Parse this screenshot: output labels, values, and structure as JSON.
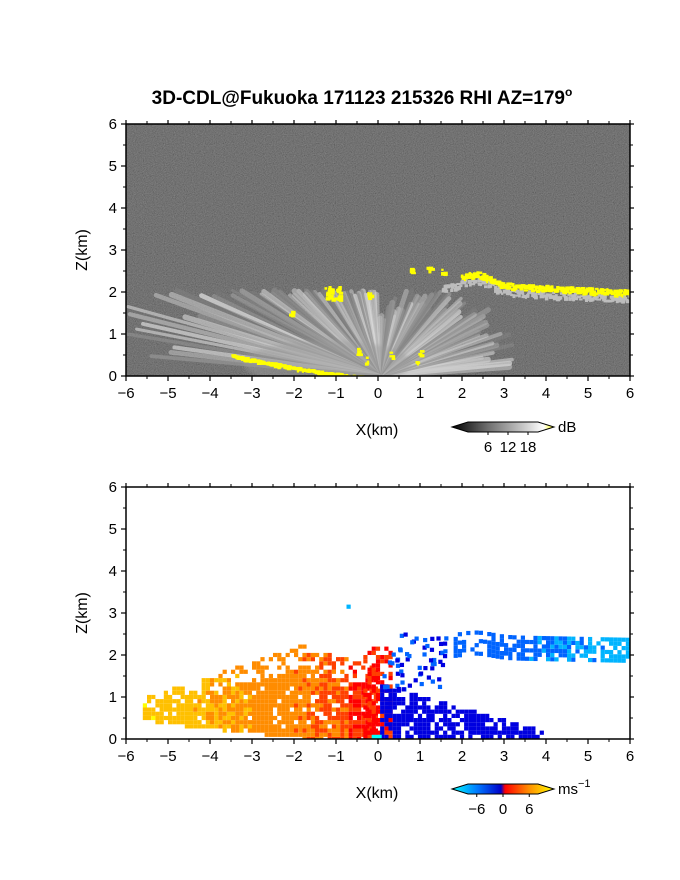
{
  "title": "3D-CDL@Fukuoka 171123 215326 RHI AZ=179",
  "title_superscript": "o",
  "chart_data": [
    {
      "type": "heatmap",
      "title": "3D-CDL@Fukuoka 171123 215326 RHI AZ=179°",
      "field": "reflectivity",
      "xlabel": "X(km)",
      "ylabel": "Z(km)",
      "xlim": [
        -6,
        6
      ],
      "ylim": [
        0,
        6
      ],
      "xticks": [
        "−6",
        "−5",
        "−4",
        "−3",
        "−2",
        "−1",
        "0",
        "1",
        "2",
        "3",
        "4",
        "5",
        "6"
      ],
      "yticks": [
        "0",
        "1",
        "2",
        "3",
        "4",
        "5",
        "6"
      ],
      "colorbar": {
        "unit_label": "dB",
        "tick_labels": [
          "6",
          "12",
          "18"
        ],
        "tick_values": [
          6,
          12,
          18
        ],
        "range": [
          0,
          21
        ],
        "colors": [
          "#000000",
          "#6e6e6e",
          "#c8c8c8",
          "#ffffff",
          "#ffff00"
        ]
      },
      "features": [
        {
          "name": "cloud layer",
          "x_range": [
            1.5,
            6.0
          ],
          "z_range": [
            2.0,
            2.6
          ],
          "level": "> 18 dB"
        },
        {
          "name": "isolated echo",
          "x": -1.1,
          "z": 2.0,
          "level": "> 18 dB"
        },
        {
          "name": "ground clutter",
          "x_range": [
            -3.5,
            -0.5
          ],
          "z_range": [
            0.0,
            0.5
          ],
          "level": "> 18 dB"
        },
        {
          "name": "boundary-layer fan",
          "x_range": [
            -6.0,
            3.0
          ],
          "z_range": [
            0.0,
            2.0
          ],
          "level": "6-15 dB"
        }
      ]
    },
    {
      "type": "heatmap",
      "field": "doppler velocity",
      "xlabel": "X(km)",
      "ylabel": "Z(km)",
      "xlim": [
        -6,
        6
      ],
      "ylim": [
        0,
        6
      ],
      "xticks": [
        "−6",
        "−5",
        "−4",
        "−3",
        "−2",
        "−1",
        "0",
        "1",
        "2",
        "3",
        "4",
        "5",
        "6"
      ],
      "yticks": [
        "0",
        "1",
        "2",
        "3",
        "4",
        "5",
        "6"
      ],
      "colorbar": {
        "unit_label": "ms",
        "unit_superscript": "−1",
        "tick_labels": [
          "−6",
          "0",
          "6"
        ],
        "tick_values": [
          -6,
          0,
          6
        ],
        "range": [
          -8,
          8
        ],
        "colors": [
          "#00ffff",
          "#0078ff",
          "#0000c8",
          "#ff0000",
          "#ff8c00",
          "#ffff00"
        ]
      },
      "features": [
        {
          "name": "approaching flow",
          "x_range": [
            -5.6,
            -0.1
          ],
          "z_range": [
            0.0,
            2.3
          ],
          "velocity_ms": [
            1,
            7
          ]
        },
        {
          "name": "receding flow",
          "x_range": [
            0.0,
            3.9
          ],
          "z_range": [
            0.0,
            1.3
          ],
          "velocity_ms": [
            -3,
            -1
          ]
        },
        {
          "name": "cloud layer",
          "x_range": [
            1.8,
            6.0
          ],
          "z_range": [
            1.9,
            2.5
          ],
          "velocity_ms": [
            -5,
            -3
          ]
        },
        {
          "name": "isolated pixel",
          "x": -0.7,
          "z": 3.2,
          "velocity_ms": -6
        }
      ]
    }
  ]
}
